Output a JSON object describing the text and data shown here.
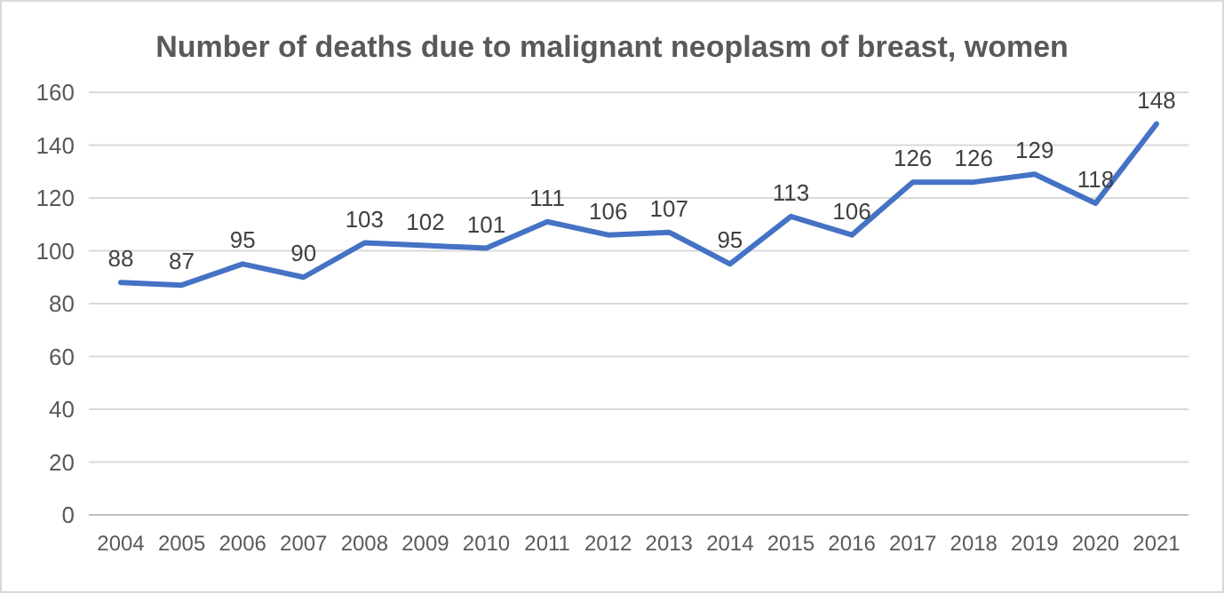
{
  "chart_data": {
    "type": "line",
    "title": "Number of deaths due to malignant neoplasm of breast, women",
    "categories": [
      "2004",
      "2005",
      "2006",
      "2007",
      "2008",
      "2009",
      "2010",
      "2011",
      "2012",
      "2013",
      "2014",
      "2015",
      "2016",
      "2017",
      "2018",
      "2019",
      "2020",
      "2021"
    ],
    "series": [
      {
        "color": "#4472c4",
        "values": [
          88,
          87,
          95,
          90,
          103,
          102,
          101,
          111,
          106,
          107,
          95,
          113,
          106,
          126,
          126,
          129,
          118,
          148
        ]
      }
    ],
    "ylim": [
      0,
      160
    ],
    "yticks": [
      0,
      20,
      40,
      60,
      80,
      100,
      120,
      140,
      160
    ],
    "grid": "y",
    "data_labels": true,
    "marker": "none",
    "line_style": "solid"
  }
}
